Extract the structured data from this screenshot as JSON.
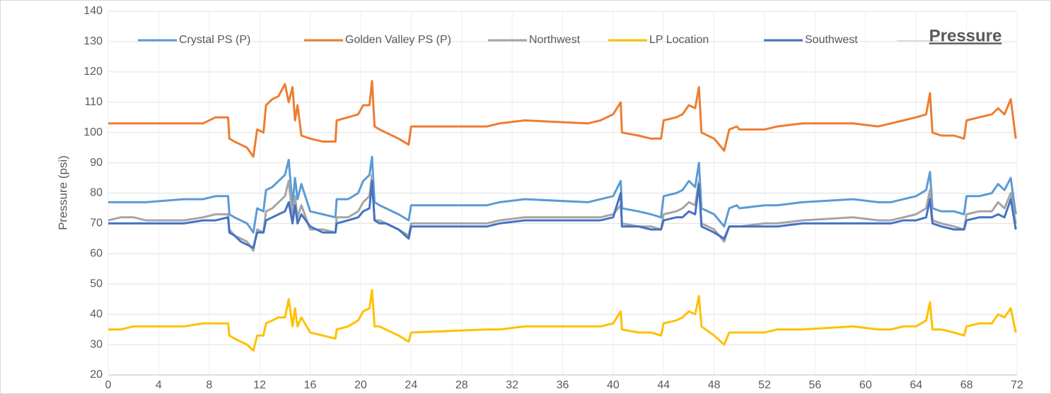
{
  "chart_data": {
    "type": "line",
    "title": "Pressure",
    "y_label": "Pressure (psi)",
    "x": [
      0,
      1,
      2,
      3,
      6,
      7.5,
      8.5,
      9.5,
      9.6,
      10,
      10.5,
      11,
      11.5,
      11.8,
      12.3,
      12.5,
      13,
      13.5,
      14,
      14.3,
      14.6,
      14.8,
      15,
      15.3,
      16,
      17,
      18,
      18.1,
      19,
      19.8,
      20.2,
      20.7,
      20.9,
      21.1,
      21.5,
      22,
      23,
      23.8,
      24,
      30,
      31,
      33,
      38,
      39,
      40,
      40.6,
      40.7,
      42,
      43,
      43.8,
      44,
      45,
      45.5,
      46,
      46.5,
      46.8,
      47,
      48,
      48.8,
      49.2,
      49.8,
      50,
      52,
      53,
      55,
      59,
      61,
      62,
      63,
      64,
      64.8,
      65.1,
      65.3,
      66,
      67,
      67.8,
      68,
      69,
      70,
      70.5,
      71,
      71.5,
      71.9
    ],
    "series": [
      {
        "name": "Crystal PS (P)",
        "color": "#5b9bd5",
        "values": [
          77,
          77,
          77,
          77,
          78,
          78,
          79,
          79,
          73,
          72,
          71,
          70,
          67,
          75,
          74,
          81,
          82,
          84,
          86,
          91,
          76,
          85,
          78,
          83,
          74,
          73,
          72,
          78,
          78,
          80,
          84,
          86,
          92,
          77,
          76,
          75,
          73,
          71,
          76,
          76,
          77,
          78,
          77,
          78,
          79,
          84,
          75,
          74,
          73,
          72,
          79,
          80,
          81,
          84,
          82,
          90,
          75,
          73,
          69,
          75,
          76,
          75,
          76,
          76,
          77,
          78,
          77,
          77,
          78,
          79,
          81,
          87,
          75,
          74,
          74,
          73,
          79,
          79,
          80,
          83,
          81,
          85,
          73
        ]
      },
      {
        "name": "Golden Valley PS (P)",
        "color": "#ed7d31",
        "values": [
          103,
          103,
          103,
          103,
          103,
          103,
          105,
          105,
          98,
          97,
          96,
          95,
          92,
          101,
          100,
          109,
          111,
          112,
          116,
          110,
          115,
          104,
          109,
          99,
          98,
          97,
          97,
          104,
          105,
          106,
          109,
          109,
          117,
          102,
          101,
          100,
          98,
          96,
          102,
          102,
          103,
          104,
          103,
          104,
          106,
          110,
          100,
          99,
          98,
          98,
          104,
          105,
          106,
          109,
          108,
          115,
          100,
          98,
          94,
          101,
          102,
          101,
          101,
          102,
          103,
          103,
          102,
          103,
          104,
          105,
          106,
          113,
          100,
          99,
          99,
          98,
          104,
          105,
          106,
          108,
          106,
          111,
          98
        ]
      },
      {
        "name": "Northwest",
        "color": "#a5a5a5",
        "values": [
          71,
          72,
          72,
          71,
          71,
          72,
          73,
          73,
          68,
          66,
          65,
          64,
          61,
          68,
          67,
          74,
          75,
          77,
          79,
          84,
          72,
          79,
          72,
          76,
          68,
          68,
          67,
          72,
          72,
          74,
          77,
          79,
          86,
          71,
          71,
          70,
          68,
          66,
          70,
          70,
          71,
          72,
          72,
          72,
          73,
          76,
          70,
          69,
          69,
          68,
          73,
          74,
          75,
          77,
          76,
          84,
          70,
          68,
          64,
          69,
          69,
          69,
          70,
          70,
          71,
          72,
          71,
          71,
          72,
          73,
          75,
          81,
          71,
          70,
          69,
          68,
          73,
          74,
          74,
          77,
          75,
          80,
          70
        ]
      },
      {
        "name": "LP Location",
        "color": "#ffc000",
        "values": [
          35,
          35,
          36,
          36,
          36,
          37,
          37,
          37,
          33,
          32,
          31,
          30,
          28,
          33,
          33,
          37,
          38,
          39,
          39,
          45,
          36,
          42,
          36,
          39,
          34,
          33,
          32,
          35,
          36,
          38,
          41,
          42,
          48,
          36,
          36,
          35,
          33,
          31,
          34,
          35,
          35,
          36,
          36,
          36,
          37,
          41,
          35,
          34,
          34,
          33,
          37,
          38,
          39,
          41,
          40,
          46,
          36,
          33,
          30,
          34,
          34,
          34,
          34,
          35,
          35,
          36,
          35,
          35,
          36,
          36,
          38,
          44,
          35,
          35,
          34,
          33,
          36,
          37,
          37,
          40,
          39,
          42,
          34
        ]
      },
      {
        "name": "Southwest",
        "color": "#4472c4",
        "values": [
          70,
          70,
          70,
          70,
          70,
          71,
          71,
          72,
          67,
          66,
          64,
          63,
          62,
          67,
          67,
          71,
          72,
          73,
          74,
          77,
          70,
          76,
          70,
          73,
          69,
          67,
          67,
          70,
          71,
          72,
          74,
          75,
          84,
          71,
          70,
          70,
          68,
          65,
          69,
          69,
          70,
          71,
          71,
          71,
          72,
          80,
          69,
          69,
          68,
          68,
          71,
          72,
          72,
          74,
          73,
          83,
          69,
          67,
          65,
          69,
          69,
          69,
          69,
          69,
          70,
          70,
          70,
          70,
          71,
          71,
          72,
          78,
          70,
          69,
          68,
          68,
          71,
          72,
          72,
          73,
          72,
          78,
          68
        ]
      }
    ],
    "xlim": [
      0,
      72
    ],
    "xticks": [
      0,
      4,
      8,
      12,
      16,
      20,
      24,
      28,
      32,
      36,
      40,
      44,
      48,
      52,
      56,
      60,
      64,
      68,
      72
    ],
    "ylim": [
      20,
      140
    ],
    "yticks": [
      20,
      30,
      40,
      50,
      60,
      70,
      80,
      90,
      100,
      110,
      120,
      130,
      140
    ],
    "grid": true,
    "legend": "top"
  }
}
